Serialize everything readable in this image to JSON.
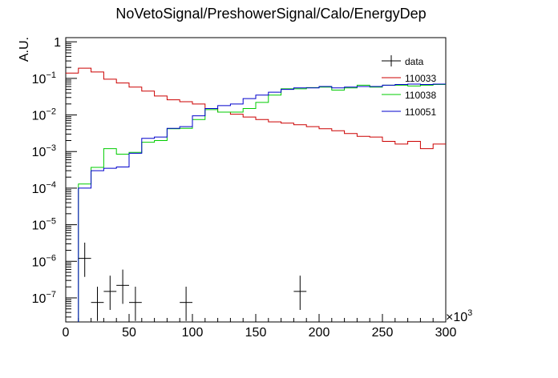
{
  "chart_data": {
    "type": "line",
    "title": "NoVetoSignal/PreshowerSignal/Calo/EnergyDep",
    "ylabel": "A.U.",
    "xlabel": "",
    "x_exponent_label": "×10",
    "x_exponent_power": "3",
    "xlim": [
      0,
      300
    ],
    "ylim": [
      2.2e-08,
      1.3
    ],
    "y_scale": "log",
    "grid": false,
    "legend_placement": "top-right",
    "x_tick_labels": [
      "0",
      "50",
      "100",
      "150",
      "200",
      "250",
      "300"
    ],
    "y_tick_labels": [
      {
        "mantissa": "1",
        "exp": ""
      },
      {
        "mantissa": "10",
        "exp": "−1"
      },
      {
        "mantissa": "10",
        "exp": "−2"
      },
      {
        "mantissa": "10",
        "exp": "−3"
      },
      {
        "mantissa": "10",
        "exp": "−4"
      },
      {
        "mantissa": "10",
        "exp": "−5"
      },
      {
        "mantissa": "10",
        "exp": "−6"
      },
      {
        "mantissa": "10",
        "exp": "−7"
      }
    ],
    "bin_edges": [
      0,
      10,
      20,
      30,
      40,
      50,
      60,
      70,
      80,
      90,
      100,
      110,
      120,
      130,
      140,
      150,
      160,
      170,
      180,
      190,
      200,
      210,
      220,
      230,
      240,
      250,
      260,
      270,
      280,
      290,
      300
    ],
    "series": [
      {
        "name": "data",
        "color": "#000000",
        "style": "points",
        "points": [
          {
            "x": 15,
            "y": 1.2e-06
          },
          {
            "x": 25,
            "y": 7.5e-08
          },
          {
            "x": 35,
            "y": 1.5e-07
          },
          {
            "x": 45,
            "y": 2.2e-07
          },
          {
            "x": 55,
            "y": 7.5e-08
          },
          {
            "x": 95,
            "y": 7.5e-08
          },
          {
            "x": 185,
            "y": 1.5e-07
          }
        ]
      },
      {
        "name": "110033",
        "color": "#cc0000",
        "style": "hist",
        "values": [
          0.14,
          0.19,
          0.15,
          0.095,
          0.075,
          0.058,
          0.045,
          0.033,
          0.026,
          0.023,
          0.02,
          0.015,
          0.012,
          0.0105,
          0.0088,
          0.0075,
          0.0065,
          0.006,
          0.0054,
          0.0048,
          0.0042,
          0.0037,
          0.0031,
          0.0026,
          0.0025,
          0.0019,
          0.0016,
          0.0019,
          0.0012,
          0.0016
        ]
      },
      {
        "name": "110038",
        "color": "#00cc00",
        "style": "hist",
        "values": [
          null,
          0.00013,
          0.00037,
          0.0012,
          0.00085,
          0.00095,
          0.0018,
          0.002,
          0.0042,
          0.0043,
          0.0075,
          0.014,
          0.012,
          0.012,
          0.015,
          0.022,
          0.035,
          0.052,
          0.052,
          0.056,
          0.058,
          0.048,
          0.055,
          0.065,
          0.058,
          0.065,
          0.065,
          0.062,
          0.065,
          0.068
        ]
      },
      {
        "name": "110051",
        "color": "#0000cc",
        "style": "hist",
        "values": [
          null,
          0.0001,
          0.0003,
          0.00035,
          0.00038,
          0.0009,
          0.0023,
          0.0025,
          0.0043,
          0.0048,
          0.0095,
          0.015,
          0.018,
          0.02,
          0.028,
          0.035,
          0.042,
          0.05,
          0.055,
          0.055,
          0.06,
          0.055,
          0.058,
          0.06,
          0.06,
          0.065,
          0.068,
          0.07,
          0.068,
          0.07
        ]
      }
    ]
  }
}
